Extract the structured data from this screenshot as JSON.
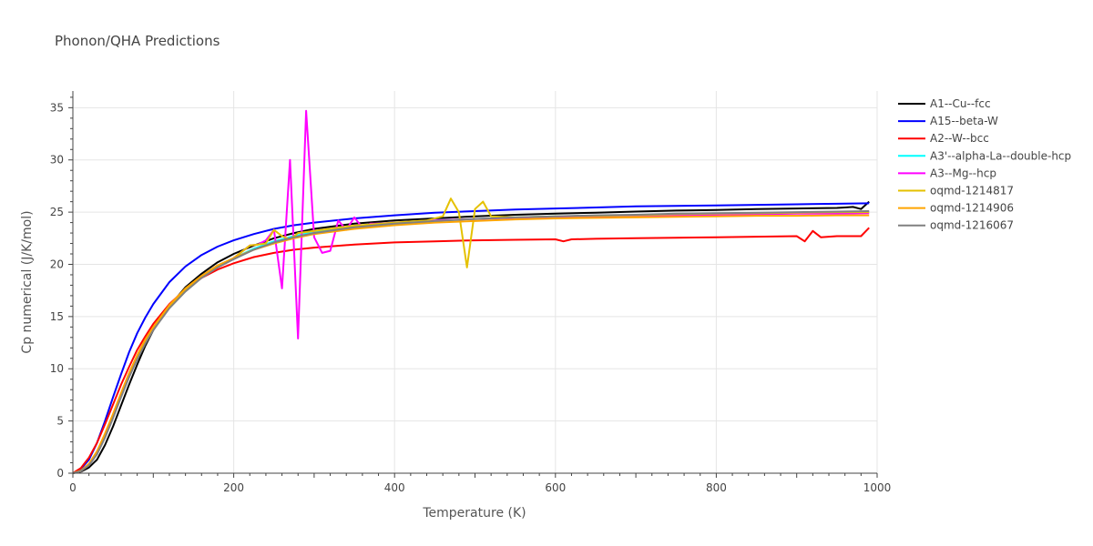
{
  "chart_data": {
    "type": "line",
    "title": "Phonon/QHA Predictions",
    "xlabel": "Temperature (K)",
    "ylabel": "Cp numerical (J/K/mol)",
    "xlim": [
      0,
      1000
    ],
    "ylim": [
      0,
      36.6
    ],
    "xticks": [
      0,
      200,
      400,
      600,
      800,
      1000
    ],
    "yticks": [
      0,
      5,
      10,
      15,
      20,
      25,
      30,
      35
    ],
    "grid": true,
    "legend_position": "right",
    "series": [
      {
        "name": "A1--Cu--fcc",
        "color": "#000000",
        "x": [
          0,
          10,
          20,
          30,
          40,
          50,
          60,
          70,
          80,
          90,
          100,
          120,
          140,
          160,
          180,
          200,
          225,
          250,
          275,
          300,
          350,
          400,
          450,
          500,
          550,
          600,
          650,
          700,
          750,
          800,
          850,
          900,
          950,
          960,
          970,
          980,
          990
        ],
        "y": [
          0,
          0.15,
          0.55,
          1.3,
          2.7,
          4.5,
          6.5,
          8.5,
          10.4,
          12.2,
          13.7,
          16.0,
          17.8,
          19.1,
          20.2,
          21.0,
          21.8,
          22.5,
          23.0,
          23.4,
          23.9,
          24.2,
          24.4,
          24.6,
          24.75,
          24.85,
          24.95,
          25.05,
          25.15,
          25.2,
          25.3,
          25.35,
          25.4,
          25.45,
          25.5,
          25.3,
          26.0
        ]
      },
      {
        "name": "A15--beta-W",
        "color": "#0000ff",
        "x": [
          0,
          10,
          20,
          30,
          40,
          50,
          60,
          70,
          80,
          90,
          100,
          120,
          140,
          160,
          180,
          200,
          225,
          250,
          275,
          300,
          350,
          400,
          450,
          500,
          550,
          600,
          650,
          700,
          750,
          800,
          850,
          900,
          950,
          990
        ],
        "y": [
          0,
          0.4,
          1.3,
          2.9,
          5.0,
          7.3,
          9.5,
          11.6,
          13.4,
          14.9,
          16.2,
          18.3,
          19.8,
          20.9,
          21.7,
          22.3,
          22.9,
          23.4,
          23.75,
          24.0,
          24.4,
          24.7,
          24.95,
          25.1,
          25.25,
          25.35,
          25.45,
          25.55,
          25.6,
          25.65,
          25.7,
          25.75,
          25.8,
          25.85
        ]
      },
      {
        "name": "A2--W--bcc",
        "color": "#ff0000",
        "x": [
          0,
          10,
          20,
          30,
          40,
          50,
          60,
          70,
          80,
          90,
          100,
          120,
          140,
          160,
          180,
          200,
          225,
          250,
          275,
          300,
          350,
          400,
          450,
          500,
          550,
          600,
          610,
          620,
          650,
          700,
          750,
          800,
          850,
          900,
          910,
          920,
          930,
          950,
          970,
          980,
          990
        ],
        "y": [
          0,
          0.5,
          1.5,
          2.9,
          4.7,
          6.6,
          8.5,
          10.2,
          11.8,
          13.1,
          14.3,
          16.2,
          17.6,
          18.7,
          19.5,
          20.1,
          20.7,
          21.1,
          21.4,
          21.6,
          21.9,
          22.1,
          22.2,
          22.3,
          22.35,
          22.4,
          22.2,
          22.4,
          22.45,
          22.5,
          22.55,
          22.6,
          22.65,
          22.7,
          22.2,
          23.2,
          22.6,
          22.7,
          22.7,
          22.7,
          23.5
        ]
      },
      {
        "name": "A3'--alpha-La--double-hcp",
        "color": "#00ffff",
        "x": [
          0,
          10,
          20,
          30,
          40,
          50,
          60,
          70,
          80,
          90,
          100,
          120,
          140,
          160,
          180,
          200,
          225,
          250,
          275,
          300,
          350,
          400,
          450,
          500,
          550,
          600,
          650,
          700,
          750,
          800,
          850,
          900,
          950,
          990
        ],
        "y": [
          0,
          0.2,
          0.8,
          1.9,
          3.5,
          5.4,
          7.4,
          9.3,
          11.0,
          12.5,
          13.8,
          15.9,
          17.5,
          18.8,
          19.8,
          20.6,
          21.5,
          22.2,
          22.7,
          23.1,
          23.6,
          23.95,
          24.2,
          24.35,
          24.5,
          24.6,
          24.65,
          24.7,
          24.8,
          24.85,
          24.9,
          24.95,
          25.0,
          25.0
        ]
      },
      {
        "name": "A3--Mg--hcp",
        "color": "#ff00ff",
        "x": [
          0,
          10,
          20,
          30,
          40,
          50,
          60,
          70,
          80,
          90,
          100,
          120,
          140,
          160,
          180,
          200,
          220,
          230,
          240,
          250,
          260,
          270,
          280,
          290,
          300,
          310,
          320,
          330,
          340,
          350,
          360,
          370,
          380,
          400,
          450,
          500,
          550,
          600,
          650,
          700,
          750,
          800,
          850,
          900,
          950,
          990
        ],
        "y": [
          0,
          0.2,
          0.8,
          1.9,
          3.5,
          5.4,
          7.4,
          9.3,
          11.0,
          12.5,
          13.8,
          15.9,
          17.5,
          18.8,
          19.8,
          20.6,
          21.8,
          21.9,
          22.3,
          23.3,
          17.7,
          30.0,
          12.9,
          34.7,
          22.6,
          21.1,
          21.3,
          24.2,
          23.3,
          24.5,
          23.5,
          23.9,
          23.9,
          24.0,
          24.2,
          24.35,
          24.45,
          24.55,
          24.6,
          24.65,
          24.7,
          24.75,
          24.8,
          24.85,
          24.85,
          24.9
        ]
      },
      {
        "name": "oqmd-1214817",
        "color": "#e5c100",
        "x": [
          0,
          10,
          20,
          30,
          40,
          50,
          60,
          70,
          80,
          90,
          100,
          120,
          140,
          160,
          180,
          200,
          220,
          230,
          240,
          250,
          260,
          270,
          280,
          300,
          350,
          400,
          440,
          460,
          470,
          480,
          490,
          500,
          510,
          520,
          550,
          600,
          650,
          700,
          750,
          800,
          850,
          900,
          950,
          990
        ],
        "y": [
          0,
          0.2,
          0.8,
          1.9,
          3.5,
          5.4,
          7.4,
          9.3,
          11.0,
          12.5,
          13.8,
          15.9,
          17.5,
          18.8,
          19.8,
          20.6,
          21.8,
          21.9,
          22.0,
          23.3,
          22.7,
          22.4,
          23.0,
          23.2,
          23.7,
          24.0,
          24.2,
          24.6,
          26.3,
          25.0,
          19.7,
          25.3,
          26.0,
          24.6,
          24.5,
          24.6,
          24.65,
          24.7,
          24.8,
          24.85,
          24.9,
          24.95,
          25.0,
          25.0
        ]
      },
      {
        "name": "oqmd-1214906",
        "color": "#ffa500",
        "x": [
          0,
          10,
          20,
          30,
          40,
          50,
          60,
          70,
          80,
          90,
          100,
          120,
          140,
          160,
          180,
          200,
          225,
          250,
          275,
          300,
          350,
          400,
          450,
          500,
          550,
          600,
          650,
          700,
          750,
          800,
          850,
          900,
          950,
          990
        ],
        "y": [
          0,
          0.25,
          0.9,
          2.1,
          3.8,
          5.7,
          7.7,
          9.6,
          11.3,
          12.8,
          14.0,
          16.1,
          17.7,
          18.9,
          19.9,
          20.6,
          21.4,
          22.0,
          22.5,
          22.9,
          23.4,
          23.75,
          24.0,
          24.15,
          24.3,
          24.4,
          24.45,
          24.5,
          24.55,
          24.6,
          24.65,
          24.65,
          24.7,
          24.7
        ]
      },
      {
        "name": "oqmd-1216067",
        "color": "#808080",
        "x": [
          0,
          10,
          20,
          30,
          40,
          50,
          60,
          70,
          80,
          90,
          100,
          120,
          140,
          160,
          180,
          200,
          225,
          250,
          275,
          300,
          350,
          400,
          450,
          500,
          550,
          600,
          650,
          700,
          750,
          800,
          850,
          900,
          950,
          990
        ],
        "y": [
          0,
          0.2,
          0.75,
          1.8,
          3.4,
          5.3,
          7.3,
          9.2,
          10.9,
          12.4,
          13.7,
          15.8,
          17.4,
          18.7,
          19.7,
          20.5,
          21.4,
          22.1,
          22.6,
          23.0,
          23.55,
          23.9,
          24.15,
          24.35,
          24.5,
          24.6,
          24.7,
          24.75,
          24.85,
          24.9,
          24.95,
          25.0,
          25.05,
          25.1
        ]
      }
    ]
  }
}
